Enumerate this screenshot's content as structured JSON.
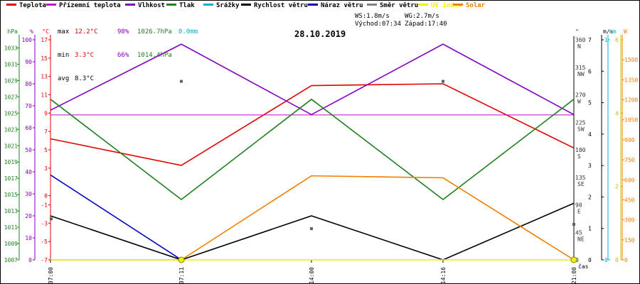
{
  "legend": [
    {
      "label": "Teplota",
      "color": "#e00000"
    },
    {
      "label": "Přízemní teplota",
      "color": "#d000d0"
    },
    {
      "label": "Vlhkost",
      "color": "#8000c0"
    },
    {
      "label": "Tlak",
      "color": "#208020"
    },
    {
      "label": "Srážky",
      "color": "#00b0d0"
    },
    {
      "label": "Rychlost větru",
      "color": "#000000"
    },
    {
      "label": "Náraz větru",
      "color": "#0000c0"
    },
    {
      "label": "Směr větru",
      "color": "#808080"
    },
    {
      "label": "UV index",
      "color": "#f0f000"
    },
    {
      "label": "Solar",
      "color": "#f08000"
    }
  ],
  "stats": {
    "max": {
      "label": "max",
      "temp": "12.2°C",
      "hum": "98%",
      "press": "1026.7hPa",
      "rain": "0.0mm"
    },
    "min": {
      "label": "min",
      "temp": "3.3°C",
      "hum": "66%",
      "press": "1014.4hPa"
    },
    "avg": {
      "label": "avg",
      "temp": "8.3°C"
    }
  },
  "wind": {
    "ws": "WS:1.8m/s",
    "wg": "WG:2.7m/s",
    "sunrise": "Východ:07:34",
    "sunset": "Západ:17:40"
  },
  "date": "28.10.2019",
  "colors": {
    "temp": "#e00000",
    "hum": "#8000c0",
    "press": "#208020",
    "rain": "#00b0d0",
    "wind": "#000000",
    "gust": "#0000c0",
    "dir": "#606060",
    "uv": "#f0f000",
    "solar": "#f08000",
    "ground": "#d000d0"
  },
  "chart_data": {
    "type": "line",
    "x": [
      "07:00",
      "07:11",
      "14:00",
      "14:16",
      "21:00"
    ],
    "xlabel": "čas",
    "axes": {
      "hpa": {
        "unit": "hPa",
        "ticks": [
          "1007",
          "1009",
          "1011",
          "1013",
          "1015",
          "1017",
          "1019",
          "1021",
          "1023",
          "1025",
          "1027",
          "1029",
          "1031",
          "1033"
        ],
        "range": [
          1007,
          1034
        ]
      },
      "pct": {
        "unit": "%",
        "ticks": [
          "0",
          "10",
          "20",
          "30",
          "40",
          "50",
          "60",
          "70",
          "80",
          "90",
          "100"
        ],
        "range": [
          0,
          100
        ]
      },
      "c": {
        "unit": "°C",
        "ticks": [
          "-7",
          "-5",
          "-3",
          "-1",
          "0",
          "3",
          "5",
          "7",
          "9",
          "11",
          "13",
          "15",
          "17"
        ],
        "range": [
          -7,
          17
        ]
      },
      "dir": {
        "unit": "°",
        "ticks": [
          "0",
          "45",
          "90",
          "135",
          "180",
          "225",
          "270",
          "315",
          "360"
        ],
        "labels": [
          "",
          "NE",
          "E",
          "SE",
          "S",
          "SW",
          "W",
          "NW",
          "N"
        ],
        "range": [
          0,
          360
        ]
      },
      "ms": {
        "unit": "m/s",
        "ticks": [
          "0",
          "1",
          "2",
          "3",
          "4",
          "5",
          "6",
          "7"
        ],
        "range": [
          0,
          7
        ]
      },
      "mm": {
        "unit": "mm",
        "ticks": [
          "0",
          "1"
        ],
        "range": [
          0,
          1
        ]
      },
      "uv": {
        "unit": "",
        "ticks": [
          "0",
          "2",
          "4",
          "6"
        ],
        "range": [
          0,
          6
        ]
      },
      "w": {
        "unit": "W",
        "ticks": [
          "0",
          "150",
          "300",
          "450",
          "600",
          "750",
          "900",
          "1050",
          "1200",
          "1350",
          "1500"
        ],
        "range": [
          0,
          1650
        ]
      }
    },
    "series": [
      {
        "name": "Teplota",
        "axis": "c",
        "values": [
          6.2,
          3.3,
          12.0,
          12.2,
          5.2
        ]
      },
      {
        "name": "Přízemní teplota",
        "axis": "c",
        "values": [
          8.8,
          8.8,
          8.8,
          8.8,
          8.8
        ]
      },
      {
        "name": "Vlhkost",
        "axis": "pct",
        "values": [
          68,
          98,
          66,
          98,
          66
        ]
      },
      {
        "name": "Tlak",
        "axis": "hpa",
        "values": [
          1026.7,
          1014.4,
          1026.7,
          1014.4,
          1026.7
        ]
      },
      {
        "name": "Rychlost větru",
        "axis": "ms",
        "values": [
          1.4,
          0,
          1.4,
          0,
          1.8
        ]
      },
      {
        "name": "Náraz větru",
        "axis": "ms",
        "values": [
          2.7,
          0,
          null,
          null,
          null
        ]
      },
      {
        "name": "Směr větru",
        "axis": "dir",
        "values": [
          67,
          292,
          51,
          292,
          58
        ]
      },
      {
        "name": "Solar",
        "axis": "w",
        "values": [
          0,
          0,
          630,
          615,
          0
        ]
      },
      {
        "name": "UV index",
        "axis": "uv",
        "values": [
          0,
          0,
          0,
          0,
          0
        ]
      }
    ]
  }
}
